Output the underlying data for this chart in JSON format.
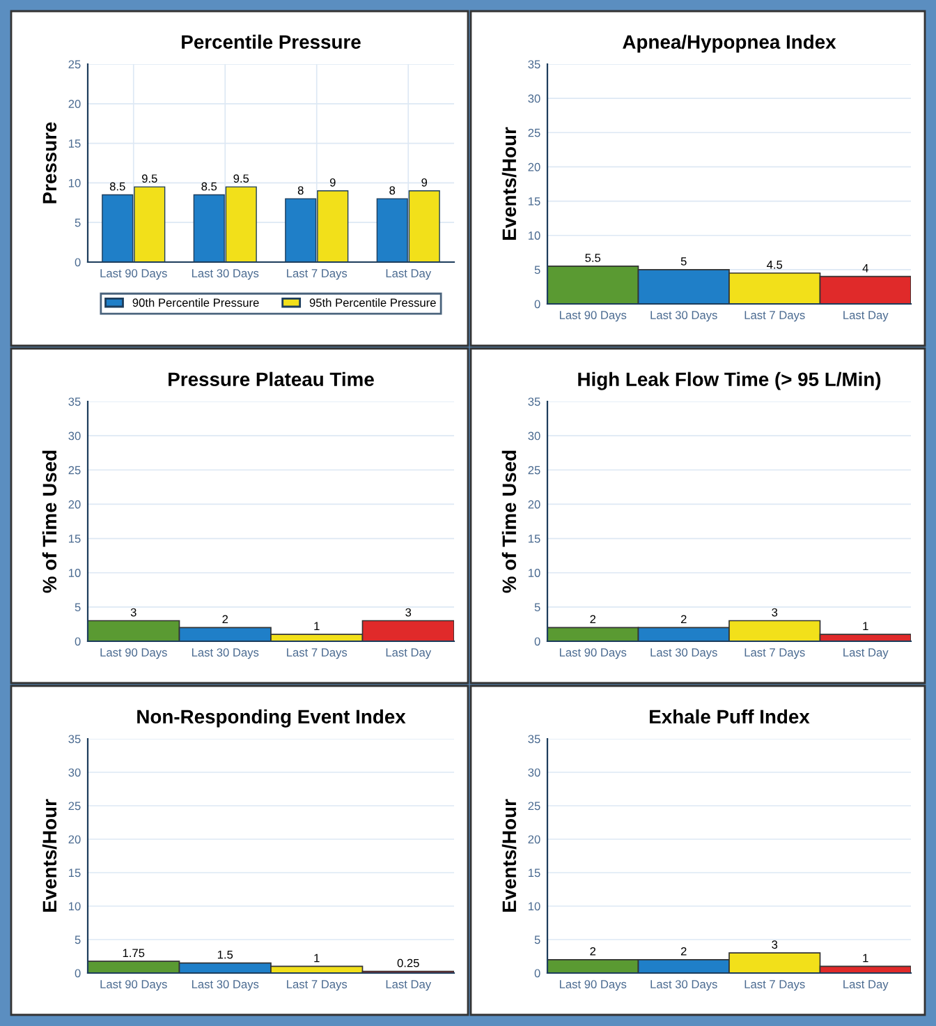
{
  "chart_data": [
    {
      "type": "bar",
      "title": "Percentile Pressure",
      "ylabel": "Pressure",
      "categories": [
        "Last 90 Days",
        "Last 30 Days",
        "Last 7 Days",
        "Last Day"
      ],
      "series": [
        {
          "name": "90th Percentile Pressure",
          "color": "#1f7fc8",
          "values": [
            8.5,
            8.5,
            8,
            8
          ]
        },
        {
          "name": "95th Percentile Pressure",
          "color": "#f2e01a",
          "values": [
            9.5,
            9.5,
            9,
            9
          ]
        }
      ],
      "ylim": [
        0,
        25
      ],
      "yticks": [
        0,
        5,
        10,
        15,
        20,
        25
      ],
      "grid": true,
      "legend": "bottom",
      "data_labels": true
    },
    {
      "type": "bar",
      "title": "Apnea/Hypopnea Index",
      "ylabel": "Events/Hour",
      "categories": [
        "Last 90 Days",
        "Last 30 Days",
        "Last 7 Days",
        "Last Day"
      ],
      "values": [
        5.5,
        5,
        4.5,
        4
      ],
      "colors": [
        "#5a9a32",
        "#1f7fc8",
        "#f2e01a",
        "#e02a2a"
      ],
      "ylim": [
        0,
        35
      ],
      "yticks": [
        0,
        5,
        10,
        15,
        20,
        25,
        30,
        35
      ],
      "grid": "y",
      "data_labels": true
    },
    {
      "type": "bar",
      "title": "Pressure Plateau Time",
      "ylabel": "% of Time Used",
      "categories": [
        "Last 90 Days",
        "Last 30 Days",
        "Last 7 Days",
        "Last Day"
      ],
      "values": [
        3,
        2,
        1,
        3
      ],
      "colors": [
        "#5a9a32",
        "#1f7fc8",
        "#f2e01a",
        "#e02a2a"
      ],
      "ylim": [
        0,
        35
      ],
      "yticks": [
        0,
        5,
        10,
        15,
        20,
        25,
        30,
        35
      ],
      "grid": "y",
      "data_labels": true
    },
    {
      "type": "bar",
      "title": "High Leak Flow Time (> 95 L/Min)",
      "ylabel": "% of Time Used",
      "categories": [
        "Last 90 Days",
        "Last 30 Days",
        "Last 7 Days",
        "Last Day"
      ],
      "values": [
        2,
        2,
        3,
        1
      ],
      "colors": [
        "#5a9a32",
        "#1f7fc8",
        "#f2e01a",
        "#e02a2a"
      ],
      "ylim": [
        0,
        35
      ],
      "yticks": [
        0,
        5,
        10,
        15,
        20,
        25,
        30,
        35
      ],
      "grid": "y",
      "data_labels": true
    },
    {
      "type": "bar",
      "title": "Non-Responding Event Index",
      "ylabel": "Events/Hour",
      "categories": [
        "Last 90 Days",
        "Last 30 Days",
        "Last 7 Days",
        "Last Day"
      ],
      "values": [
        1.75,
        1.5,
        1,
        0.25
      ],
      "colors": [
        "#5a9a32",
        "#1f7fc8",
        "#f2e01a",
        "#e02a2a"
      ],
      "ylim": [
        0,
        35
      ],
      "yticks": [
        0,
        5,
        10,
        15,
        20,
        25,
        30,
        35
      ],
      "grid": "y",
      "data_labels": true
    },
    {
      "type": "bar",
      "title": "Exhale Puff Index",
      "ylabel": "Events/Hour",
      "categories": [
        "Last 90 Days",
        "Last 30 Days",
        "Last 7 Days",
        "Last Day"
      ],
      "values": [
        2,
        2,
        3,
        1
      ],
      "colors": [
        "#5a9a32",
        "#1f7fc8",
        "#f2e01a",
        "#e02a2a"
      ],
      "ylim": [
        0,
        35
      ],
      "yticks": [
        0,
        5,
        10,
        15,
        20,
        25,
        30,
        35
      ],
      "grid": "y",
      "data_labels": true
    }
  ]
}
